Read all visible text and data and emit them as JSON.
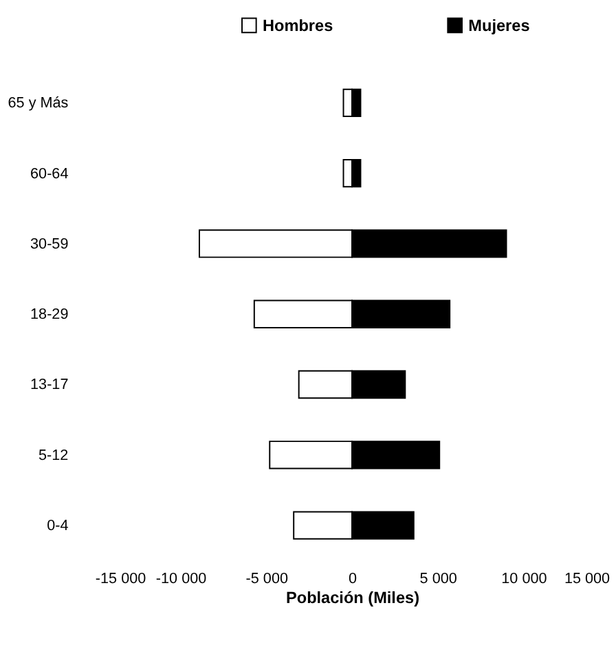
{
  "chart_data": {
    "type": "bar",
    "orientation": "horizontal",
    "xlabel": "Población (Miles)",
    "categories": [
      "65 y Más",
      "60-64",
      "30-59",
      "18-29",
      "13-17",
      "5-12",
      "0-4"
    ],
    "series": [
      {
        "name": "Hombres",
        "color": "#ffffff",
        "values": [
          -500,
          -500,
          -8900,
          -5700,
          -3100,
          -4800,
          -3400
        ]
      },
      {
        "name": "Mujeres",
        "color": "#000000",
        "values": [
          500,
          500,
          9000,
          5700,
          3100,
          5100,
          3600
        ]
      }
    ],
    "xlim": [
      -15000,
      15000
    ],
    "xticks": [
      {
        "value": -15000,
        "label": "-15 000"
      },
      {
        "value": -10000,
        "label": "-10 000"
      },
      {
        "value": -5000,
        "label": "-5 000"
      },
      0,
      {
        "value": 5000,
        "label": "5 000"
      },
      {
        "value": 10000,
        "label": "10 000"
      },
      {
        "value": 15000,
        "label": "15 000"
      }
    ],
    "stacked": true,
    "grid": false,
    "legend": "top"
  }
}
